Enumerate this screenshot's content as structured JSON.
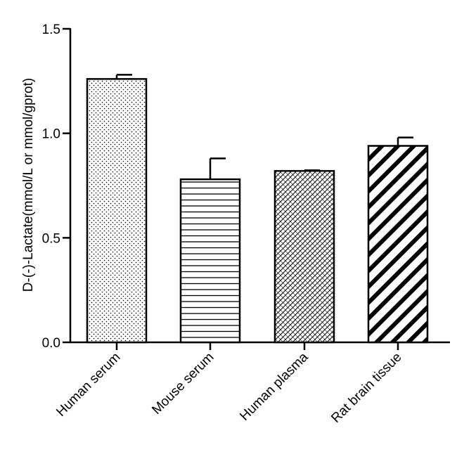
{
  "chart_data": {
    "type": "bar",
    "title": "",
    "xlabel": "",
    "ylabel": "D-(-)-Lactate(mmol/L or mmol/gprot)",
    "categories": [
      "Human serum",
      "Mouse serum",
      "Human plasma",
      "Rat brain tissue"
    ],
    "values": [
      1.26,
      0.78,
      0.82,
      0.94
    ],
    "errors": [
      0.02,
      0.1,
      0.003,
      0.04
    ],
    "fill_patterns": [
      "dots",
      "horizontal-lines",
      "crosshatch",
      "diagonal-stripes"
    ],
    "ylim": [
      0,
      1.5
    ],
    "yticks": [
      "0.0",
      "0.5",
      "1.0",
      "1.5"
    ],
    "ytick_values": [
      0,
      0.5,
      1.0,
      1.5
    ],
    "grid": false,
    "legend": "none"
  },
  "colors": {
    "axis": "#000000",
    "bar_fill": "#ffffff",
    "pattern": "#000000"
  }
}
